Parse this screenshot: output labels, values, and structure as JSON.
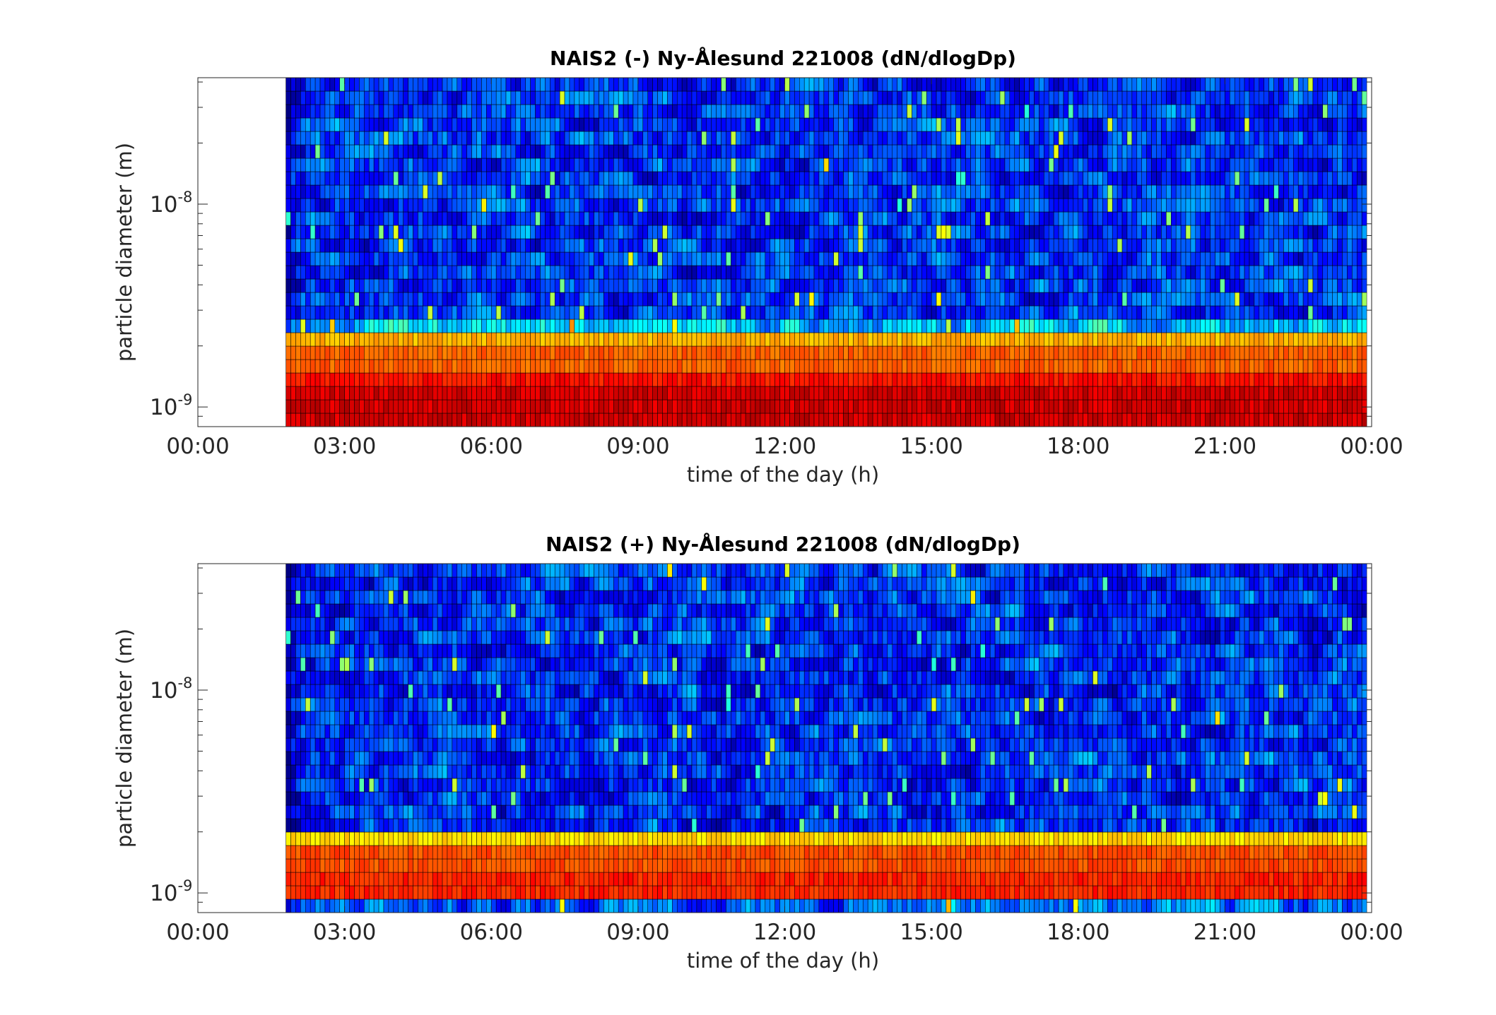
{
  "figure": {
    "colormap": "jet",
    "cell_edge_color": "#000000"
  },
  "chart_data": [
    {
      "type": "heatmap",
      "title": "NAIS2 (-) Ny-Ålesund 221008 (dN/dlogDp)",
      "xlabel": "time of the day (h)",
      "ylabel": "particle diameter (m)",
      "xlim": [
        "00:00",
        "24:00"
      ],
      "ylim": [
        8e-10,
        4.2e-08
      ],
      "yscale": "log",
      "xticks": [
        "00:00",
        "03:00",
        "06:00",
        "09:00",
        "12:00",
        "15:00",
        "18:00",
        "21:00",
        "00:00"
      ],
      "yticks": [
        {
          "value": 1e-09,
          "base": "10",
          "exp": "-9"
        },
        {
          "value": 1e-08,
          "base": "10",
          "exp": "-8"
        }
      ],
      "data_start": "01:48",
      "data_end": "23:54",
      "time_bins": 221,
      "band_profile": [
        {
          "dp_max": 1.3e-09,
          "level": 0.92
        },
        {
          "dp_max": 1.55e-09,
          "level": 0.86
        },
        {
          "dp_max": 1.85e-09,
          "level": 0.78
        },
        {
          "dp_max": 2.2e-09,
          "level": 0.7
        },
        {
          "dp_max": 2.7e-09,
          "level": 0.32
        },
        {
          "dp_max": 4.2e-08,
          "level": 0.18
        }
      ],
      "seed": 17
    },
    {
      "type": "heatmap",
      "title": "NAIS2 (+) Ny-Ålesund 221008 (dN/dlogDp)",
      "xlabel": "time of the day (h)",
      "ylabel": "particle diameter (m)",
      "xlim": [
        "00:00",
        "24:00"
      ],
      "ylim": [
        8e-10,
        4.2e-08
      ],
      "yscale": "log",
      "xticks": [
        "00:00",
        "03:00",
        "06:00",
        "09:00",
        "12:00",
        "15:00",
        "18:00",
        "21:00",
        "00:00"
      ],
      "yticks": [
        {
          "value": 1e-09,
          "base": "10",
          "exp": "-9"
        },
        {
          "value": 1e-08,
          "base": "10",
          "exp": "-8"
        }
      ],
      "data_start": "01:48",
      "data_end": "23:54",
      "time_bins": 221,
      "band_profile": [
        {
          "dp_max": 9e-10,
          "level": 0.22
        },
        {
          "dp_max": 1e-09,
          "level": 0.66
        },
        {
          "dp_max": 1.3e-09,
          "level": 0.84
        },
        {
          "dp_max": 1.6e-09,
          "level": 0.8
        },
        {
          "dp_max": 1.9e-09,
          "level": 0.66
        },
        {
          "dp_max": 4.2e-08,
          "level": 0.17
        }
      ],
      "seed": 53
    }
  ]
}
